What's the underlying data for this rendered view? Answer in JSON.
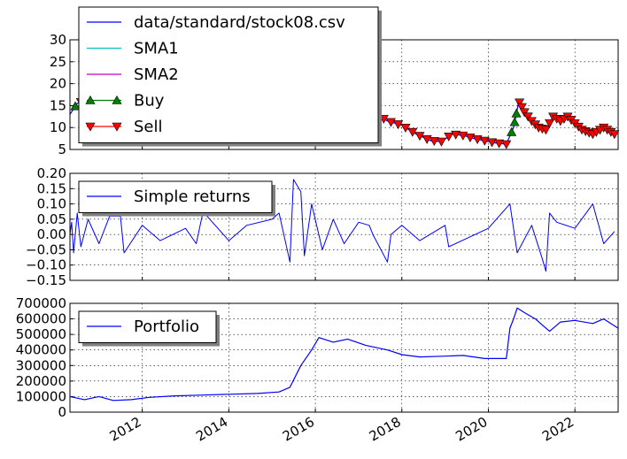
{
  "chart_data": [
    {
      "type": "line",
      "x_range": [
        "2010-05-01",
        "2023-01-01"
      ],
      "ylim": [
        5,
        30
      ],
      "yticks": [
        "5",
        "10",
        "15",
        "20",
        "25",
        "30"
      ],
      "grid": true,
      "legend_position": "top-left",
      "series": [
        {
          "name": "data/standard/stock08.csv",
          "color": "#0000ff",
          "points": [
            [
              "2010-05-01",
              13.0
            ],
            [
              "2010-07-01",
              15.5
            ],
            [
              "2010-10-01",
              16.5
            ],
            [
              "2011-03-01",
              16.0
            ],
            [
              "2011-07-01",
              15.0
            ],
            [
              "2011-10-01",
              12.0
            ],
            [
              "2012-01-01",
              11.0
            ],
            [
              "2012-06-01",
              9.0
            ],
            [
              "2012-10-01",
              7.5
            ],
            [
              "2013-03-01",
              7.5
            ],
            [
              "2013-09-01",
              7.8
            ],
            [
              "2014-03-01",
              7.5
            ],
            [
              "2014-06-01",
              7.2
            ],
            [
              "2014-10-01",
              7.0
            ],
            [
              "2015-03-01",
              8.0
            ],
            [
              "2015-07-01",
              9.5
            ],
            [
              "2016-01-01",
              11.0
            ],
            [
              "2016-07-01",
              12.5
            ],
            [
              "2017-01-01",
              14.0
            ],
            [
              "2017-04-01",
              14.5
            ],
            [
              "2017-06-01",
              13.0
            ],
            [
              "2017-09-01",
              11.5
            ],
            [
              "2018-01-01",
              10.5
            ],
            [
              "2018-05-01",
              8.5
            ],
            [
              "2018-09-01",
              7.0
            ],
            [
              "2018-12-01",
              6.8
            ],
            [
              "2019-03-01",
              8.5
            ],
            [
              "2019-06-01",
              8.2
            ],
            [
              "2019-09-01",
              7.5
            ],
            [
              "2019-12-01",
              7.0
            ],
            [
              "2020-03-01",
              6.5
            ],
            [
              "2020-06-01",
              6.2
            ],
            [
              "2020-08-01",
              10.0
            ],
            [
              "2020-09-15",
              16.0
            ],
            [
              "2020-11-01",
              13.5
            ],
            [
              "2021-01-01",
              11.5
            ],
            [
              "2021-03-01",
              10.0
            ],
            [
              "2021-05-01",
              9.5
            ],
            [
              "2021-07-01",
              12.5
            ],
            [
              "2021-09-01",
              11.5
            ],
            [
              "2021-11-01",
              12.5
            ],
            [
              "2022-01-01",
              11.0
            ],
            [
              "2022-03-01",
              9.5
            ],
            [
              "2022-06-01",
              8.5
            ],
            [
              "2022-09-01",
              10.0
            ],
            [
              "2022-12-01",
              8.5
            ]
          ]
        },
        {
          "name": "SMA1",
          "color": "#00bfbf",
          "points": []
        },
        {
          "name": "SMA2",
          "color": "#bf00bf",
          "points": []
        },
        {
          "name": "Buy",
          "color": "#008000",
          "marker": "triangle-up",
          "dates": [
            "2010-06-15",
            "2011-01-01",
            "2016-06-01",
            "2017-02-01",
            "2020-07-15",
            "2020-08-10",
            "2020-08-25"
          ]
        },
        {
          "name": "Sell",
          "color": "#ff0000",
          "marker": "triangle-down",
          "dates": [
            "2010-08-01",
            "2010-11-01",
            "2011-05-01",
            "2017-05-01",
            "2017-08-01",
            "2017-10-01",
            "2017-12-01",
            "2018-02-01",
            "2018-04-01",
            "2018-06-01",
            "2018-08-01",
            "2018-10-01",
            "2018-12-01",
            "2019-02-01",
            "2019-04-01",
            "2019-06-01",
            "2019-08-01",
            "2019-10-01",
            "2019-12-01",
            "2020-02-01",
            "2020-04-01",
            "2020-06-01",
            "2020-09-20",
            "2020-10-10",
            "2020-11-01",
            "2020-12-01",
            "2021-01-01",
            "2021-02-01",
            "2021-03-01",
            "2021-04-01",
            "2021-05-01",
            "2021-06-01",
            "2021-07-01",
            "2021-08-01",
            "2021-09-01",
            "2021-10-01",
            "2021-11-01",
            "2021-12-01",
            "2022-01-01",
            "2022-02-01",
            "2022-03-01",
            "2022-04-01",
            "2022-05-01",
            "2022-06-01",
            "2022-07-01",
            "2022-08-01",
            "2022-09-01",
            "2022-10-01",
            "2022-11-01",
            "2022-12-01"
          ]
        }
      ]
    },
    {
      "type": "line",
      "ylim": [
        -0.15,
        0.2
      ],
      "yticks": [
        "0.20",
        "0.15",
        "0.10",
        "0.05",
        "0.00",
        "−0.05",
        "−0.10",
        "−0.15"
      ],
      "grid": true,
      "legend_position": "top-left",
      "series": [
        {
          "name": "Simple returns",
          "color": "#0000ff",
          "points": [
            [
              "2010-05-01",
              0.0
            ],
            [
              "2010-05-15",
              0.04
            ],
            [
              "2010-06-01",
              -0.06
            ],
            [
              "2010-07-01",
              0.07
            ],
            [
              "2010-08-01",
              -0.04
            ],
            [
              "2010-10-01",
              0.05
            ],
            [
              "2011-01-01",
              -0.03
            ],
            [
              "2011-04-01",
              0.06
            ],
            [
              "2011-07-01",
              0.06
            ],
            [
              "2011-08-01",
              -0.06
            ],
            [
              "2012-01-01",
              0.03
            ],
            [
              "2012-06-01",
              -0.02
            ],
            [
              "2013-01-01",
              0.02
            ],
            [
              "2013-04-01",
              -0.03
            ],
            [
              "2013-06-01",
              0.08
            ],
            [
              "2013-07-01",
              0.06
            ],
            [
              "2014-01-01",
              -0.02
            ],
            [
              "2014-06-01",
              0.03
            ],
            [
              "2015-01-01",
              0.05
            ],
            [
              "2015-03-01",
              0.07
            ],
            [
              "2015-06-01",
              -0.09
            ],
            [
              "2015-07-01",
              0.18
            ],
            [
              "2015-09-01",
              0.14
            ],
            [
              "2015-10-01",
              -0.07
            ],
            [
              "2015-12-01",
              0.1
            ],
            [
              "2016-03-01",
              -0.05
            ],
            [
              "2016-06-01",
              0.05
            ],
            [
              "2016-09-01",
              -0.03
            ],
            [
              "2017-01-01",
              0.04
            ],
            [
              "2017-04-01",
              0.03
            ],
            [
              "2017-05-01",
              0.0
            ],
            [
              "2017-09-01",
              -0.09
            ],
            [
              "2017-10-01",
              0.0
            ],
            [
              "2018-01-01",
              0.03
            ],
            [
              "2018-06-01",
              -0.02
            ],
            [
              "2019-01-01",
              0.03
            ],
            [
              "2019-02-01",
              -0.04
            ],
            [
              "2020-01-01",
              0.02
            ],
            [
              "2020-07-01",
              0.1
            ],
            [
              "2020-09-01",
              -0.06
            ],
            [
              "2021-01-01",
              0.03
            ],
            [
              "2021-04-01",
              -0.08
            ],
            [
              "2021-05-01",
              -0.12
            ],
            [
              "2021-06-01",
              0.07
            ],
            [
              "2021-08-01",
              0.04
            ],
            [
              "2022-01-01",
              0.02
            ],
            [
              "2022-06-01",
              0.1
            ],
            [
              "2022-09-01",
              -0.03
            ],
            [
              "2022-12-01",
              0.01
            ]
          ]
        }
      ]
    },
    {
      "type": "line",
      "ylim": [
        0,
        700000
      ],
      "yticks": [
        "700000",
        "600000",
        "500000",
        "400000",
        "300000",
        "200000",
        "100000",
        "0"
      ],
      "xticks": [
        "2012",
        "2014",
        "2016",
        "2018",
        "2020",
        "2022"
      ],
      "grid": true,
      "legend_position": "top-left",
      "series": [
        {
          "name": "Portfolio",
          "color": "#0000ff",
          "points": [
            [
              "2010-05-01",
              100000
            ],
            [
              "2010-09-01",
              80000
            ],
            [
              "2011-01-01",
              100000
            ],
            [
              "2011-05-01",
              75000
            ],
            [
              "2011-10-01",
              80000
            ],
            [
              "2012-03-01",
              95000
            ],
            [
              "2012-10-01",
              105000
            ],
            [
              "2013-06-01",
              110000
            ],
            [
              "2014-01-01",
              115000
            ],
            [
              "2014-09-01",
              120000
            ],
            [
              "2015-03-01",
              130000
            ],
            [
              "2015-06-01",
              160000
            ],
            [
              "2015-09-01",
              300000
            ],
            [
              "2015-12-01",
              400000
            ],
            [
              "2016-02-01",
              480000
            ],
            [
              "2016-06-01",
              450000
            ],
            [
              "2016-10-01",
              470000
            ],
            [
              "2017-03-01",
              430000
            ],
            [
              "2017-09-01",
              400000
            ],
            [
              "2018-01-01",
              370000
            ],
            [
              "2018-06-01",
              355000
            ],
            [
              "2019-01-01",
              360000
            ],
            [
              "2019-06-01",
              365000
            ],
            [
              "2019-12-01",
              345000
            ],
            [
              "2020-06-01",
              345000
            ],
            [
              "2020-07-01",
              540000
            ],
            [
              "2020-08-01",
              600000
            ],
            [
              "2020-09-01",
              670000
            ],
            [
              "2020-11-01",
              640000
            ],
            [
              "2021-02-01",
              600000
            ],
            [
              "2021-04-01",
              560000
            ],
            [
              "2021-06-01",
              520000
            ],
            [
              "2021-09-01",
              580000
            ],
            [
              "2022-01-01",
              590000
            ],
            [
              "2022-06-01",
              570000
            ],
            [
              "2022-09-01",
              600000
            ],
            [
              "2023-01-01",
              540000
            ]
          ]
        }
      ]
    }
  ]
}
